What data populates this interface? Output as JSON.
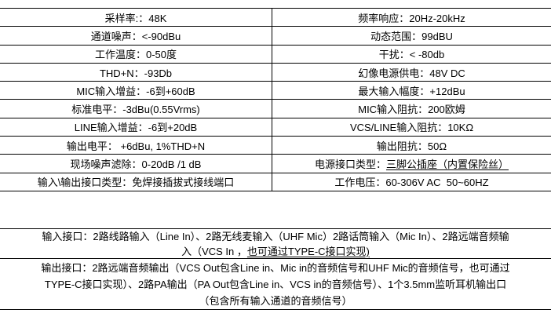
{
  "colors": {
    "background": "#ffffff",
    "text": "#000000",
    "border": "#000000"
  },
  "spec_table": {
    "rows": [
      {
        "left": [
          {
            "t": "采样率:：48K"
          }
        ],
        "right": [
          {
            "t": "频率响应：20Hz-20kHz"
          }
        ]
      },
      {
        "left": [
          {
            "t": "通道噪声：<-90dBu"
          }
        ],
        "right": [
          {
            "t": "动态范围：99dBU"
          }
        ]
      },
      {
        "left": [
          {
            "t": "工作温度：0-50度"
          }
        ],
        "right": [
          {
            "t": "干扰：< -80db"
          }
        ]
      },
      {
        "left": [
          {
            "t": "THD+N：-93Db"
          }
        ],
        "right": [
          {
            "t": "幻像电源供电：48V DC"
          }
        ]
      },
      {
        "left": [
          {
            "t": "MIC输入增益：-6到+60dB"
          }
        ],
        "right": [
          {
            "t": "最大输入幅度：+12dBu"
          }
        ]
      },
      {
        "left": [
          {
            "t": "标准电平：-3dBu(0.55Vrms)"
          }
        ],
        "right": [
          {
            "t": "MIC输入阻抗：200欧姆"
          }
        ]
      },
      {
        "left": [
          {
            "t": "LINE输入增益：-6到+20dB"
          }
        ],
        "right": [
          {
            "t": "VCS/LINE输入阻抗：10KΩ"
          }
        ]
      },
      {
        "left": [
          {
            "t": "输出电平： +6dBu, 1%THD+N"
          }
        ],
        "right": [
          {
            "t": "输出阻抗：50Ω"
          }
        ]
      },
      {
        "left": [
          {
            "t": "现场噪声滤除：0-20dB /1 dB"
          }
        ],
        "right": [
          {
            "t": "电源接口类型："
          },
          {
            "t": "三脚公插座（内置保险丝）",
            "u": true
          }
        ]
      },
      {
        "left": [
          {
            "t": "输入\\输出接口类型：免焊接插拔式接线端口"
          }
        ],
        "right": [
          {
            "t": "工作电压：60-306V AC  50~60HZ"
          }
        ]
      }
    ]
  },
  "io_table": {
    "rows": [
      {
        "name": "input-interfaces",
        "lines": [
          [
            {
              "t": "输入接口：2路线路输入（Line In）、2路无线麦输入（UHF Mic）2路话筒输入（Mic In）、2路远端音频输"
            }
          ],
          [
            {
              "t": "入（VCS In ，"
            },
            {
              "t": "也可通过TYPE-C接口实现)",
              "u": true
            }
          ]
        ]
      },
      {
        "name": "output-interfaces",
        "lines": [
          [
            {
              "t": "输出接口：2路远端音频输出（VCS Out包含Line in、Mic in的音频信号和UHF Mic的音频信号，也可通过"
            }
          ],
          [
            {
              "t": "TYPE-C接口实现）、2路PA输出（PA Out包含Line in、VCS in的音频信号）、1个3.5mm监听耳机输出口"
            }
          ],
          [
            {
              "t": "（包含所有输入通道的音频信号）"
            }
          ]
        ]
      }
    ]
  }
}
